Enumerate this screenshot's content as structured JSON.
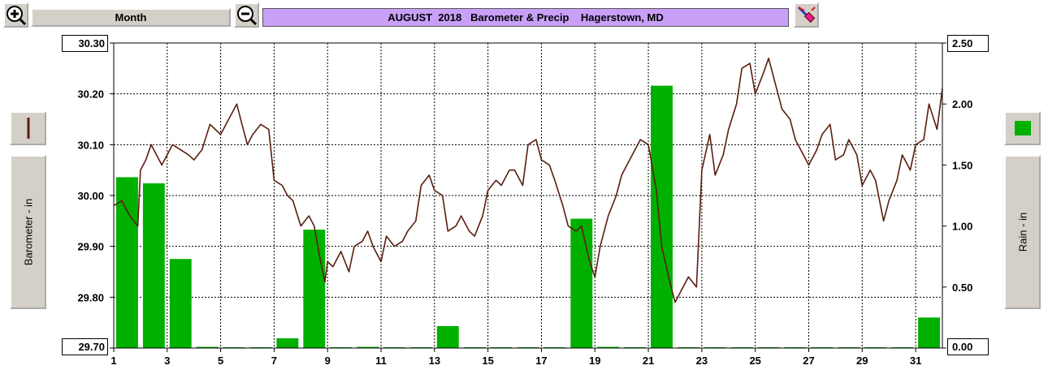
{
  "toolbar": {
    "zoom_in_icon": "plus-magnifier-icon",
    "zoom_out_icon": "minus-magnifier-icon",
    "period_label": "Month",
    "title": "AUGUST  2018   Barometer & Precip    Hagerstown, MD",
    "tool_icon": "paint-brush-icon"
  },
  "left_panel": {
    "legend_icon": "barometer-line-legend-icon",
    "axis_label": "Barometer - in"
  },
  "right_panel": {
    "legend_icon": "rain-bar-legend-icon",
    "axis_label": "Rain - in"
  },
  "colors": {
    "title_bar": "#c8a0f8",
    "barometer_line": "#5a1e0e",
    "rain_bars": "#00b000",
    "grid": "#000000"
  },
  "chart_data": {
    "type": "bar+line",
    "title": "AUGUST  2018   Barometer & Precip    Hagerstown, MD",
    "x_tick_labels": [
      "1",
      "3",
      "5",
      "7",
      "9",
      "11",
      "13",
      "15",
      "17",
      "19",
      "21",
      "23",
      "25",
      "27",
      "29",
      "31"
    ],
    "xlim": [
      1,
      32
    ],
    "left_axis": {
      "label": "Barometer - in",
      "ticks": [
        "30.30",
        "30.20",
        "30.10",
        "30.00",
        "29.90",
        "29.80",
        "29.70"
      ],
      "ylim": [
        29.7,
        30.3
      ]
    },
    "right_axis": {
      "label": "Rain - in",
      "ticks": [
        "2.50",
        "2.00",
        "1.50",
        "1.00",
        "0.50",
        "0.00"
      ],
      "ylim": [
        0.0,
        2.5
      ]
    },
    "grid": true,
    "series": [
      {
        "name": "Barometer - in",
        "kind": "line",
        "axis": "left",
        "x": [
          1.0,
          1.3,
          1.6,
          1.9,
          2.0,
          2.2,
          2.4,
          2.6,
          2.8,
          3.0,
          3.2,
          3.5,
          3.8,
          4.0,
          4.3,
          4.6,
          4.8,
          5.0,
          5.3,
          5.6,
          5.8,
          6.0,
          6.2,
          6.5,
          6.8,
          7.0,
          7.3,
          7.5,
          7.7,
          8.0,
          8.3,
          8.5,
          8.7,
          8.9,
          9.0,
          9.2,
          9.5,
          9.8,
          10.0,
          10.3,
          10.5,
          10.7,
          11.0,
          11.2,
          11.5,
          11.8,
          12.0,
          12.3,
          12.5,
          12.8,
          13.0,
          13.3,
          13.5,
          13.8,
          14.0,
          14.3,
          14.5,
          14.8,
          15.0,
          15.3,
          15.5,
          15.8,
          16.0,
          16.3,
          16.5,
          16.8,
          17.0,
          17.3,
          17.5,
          17.8,
          18.0,
          18.3,
          18.5,
          18.8,
          19.0,
          19.2,
          19.5,
          19.8,
          20.0,
          20.3,
          20.5,
          20.7,
          21.0,
          21.3,
          21.5,
          21.8,
          22.0,
          22.2,
          22.5,
          22.8,
          23.0,
          23.3,
          23.5,
          23.8,
          24.0,
          24.3,
          24.5,
          24.8,
          25.0,
          25.3,
          25.5,
          25.8,
          26.0,
          26.3,
          26.5,
          26.8,
          27.0,
          27.3,
          27.5,
          27.8,
          28.0,
          28.3,
          28.5,
          28.8,
          29.0,
          29.3,
          29.5,
          29.8,
          30.0,
          30.3,
          30.5,
          30.8,
          31.0,
          31.3,
          31.5,
          31.8,
          32.0
        ],
        "values": [
          29.98,
          29.99,
          29.96,
          29.94,
          30.05,
          30.07,
          30.1,
          30.08,
          30.06,
          30.08,
          30.1,
          30.09,
          30.08,
          30.07,
          30.09,
          30.14,
          30.13,
          30.12,
          30.15,
          30.18,
          30.14,
          30.1,
          30.12,
          30.14,
          30.13,
          30.03,
          30.02,
          30.0,
          29.99,
          29.94,
          29.96,
          29.94,
          29.88,
          29.83,
          29.87,
          29.86,
          29.89,
          29.85,
          29.9,
          29.91,
          29.93,
          29.9,
          29.87,
          29.92,
          29.9,
          29.91,
          29.93,
          29.95,
          30.02,
          30.04,
          30.01,
          30.0,
          29.93,
          29.94,
          29.96,
          29.93,
          29.92,
          29.96,
          30.01,
          30.03,
          30.02,
          30.05,
          30.05,
          30.02,
          30.1,
          30.11,
          30.07,
          30.06,
          30.03,
          29.98,
          29.94,
          29.93,
          29.94,
          29.87,
          29.84,
          29.9,
          29.96,
          30.0,
          30.04,
          30.07,
          30.09,
          30.11,
          30.1,
          30.01,
          29.9,
          29.83,
          29.79,
          29.81,
          29.84,
          29.82,
          30.05,
          30.12,
          30.04,
          30.08,
          30.13,
          30.18,
          30.25,
          30.26,
          30.2,
          30.24,
          30.27,
          30.21,
          30.17,
          30.15,
          30.11,
          30.08,
          30.06,
          30.09,
          30.12,
          30.14,
          30.07,
          30.08,
          30.11,
          30.08,
          30.02,
          30.05,
          30.03,
          29.95,
          29.99,
          30.03,
          30.08,
          30.05,
          30.1,
          30.11,
          30.18,
          30.13,
          30.21
        ]
      },
      {
        "name": "Rain - in",
        "kind": "bar",
        "axis": "right",
        "days": [
          1,
          2,
          3,
          4,
          5,
          6,
          7,
          8,
          9,
          10,
          11,
          12,
          13,
          14,
          15,
          16,
          17,
          18,
          19,
          20,
          21,
          22,
          23,
          24,
          25,
          26,
          27,
          28,
          29,
          30,
          31
        ],
        "values": [
          1.4,
          1.35,
          0.73,
          0.01,
          0.0,
          0.0,
          0.08,
          0.97,
          0.0,
          0.01,
          0.0,
          0.0,
          0.18,
          0.0,
          0.0,
          0.0,
          0.0,
          1.06,
          0.01,
          0.0,
          2.15,
          0.0,
          0.0,
          0.0,
          0.0,
          0.0,
          0.0,
          0.0,
          0.0,
          0.0,
          0.25
        ]
      }
    ]
  }
}
